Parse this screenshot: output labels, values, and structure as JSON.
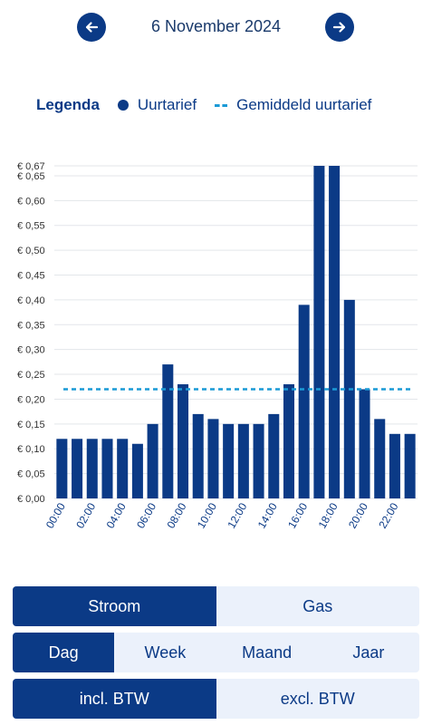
{
  "header": {
    "date": "6 November 2024",
    "prev_icon": "arrow-left-icon",
    "next_icon": "arrow-right-icon"
  },
  "legend": {
    "title": "Legenda",
    "series_label": "Uurtarief",
    "average_label": "Gemiddeld uurtarief"
  },
  "colors": {
    "bar": "#0b3a86",
    "average_line": "#1a9ad6",
    "grid": "#e3e6ea"
  },
  "chart_data": {
    "type": "bar",
    "categories": [
      "00:00",
      "01:00",
      "02:00",
      "03:00",
      "04:00",
      "05:00",
      "06:00",
      "07:00",
      "08:00",
      "09:00",
      "10:00",
      "11:00",
      "12:00",
      "13:00",
      "14:00",
      "15:00",
      "16:00",
      "17:00",
      "18:00",
      "19:00",
      "20:00",
      "21:00",
      "22:00",
      "23:00"
    ],
    "x_tick_labels": [
      "00:00",
      "02:00",
      "04:00",
      "06:00",
      "08:00",
      "10:00",
      "12:00",
      "14:00",
      "16:00",
      "18:00",
      "20:00",
      "22:00"
    ],
    "values": [
      0.12,
      0.12,
      0.12,
      0.12,
      0.12,
      0.11,
      0.15,
      0.27,
      0.23,
      0.17,
      0.16,
      0.15,
      0.15,
      0.15,
      0.17,
      0.23,
      0.39,
      0.67,
      0.67,
      0.4,
      0.22,
      0.16,
      0.13,
      0.13
    ],
    "average": 0.22,
    "ylim": [
      0,
      0.67
    ],
    "y_ticks": [
      0,
      0.05,
      0.1,
      0.15,
      0.2,
      0.25,
      0.3,
      0.35,
      0.4,
      0.45,
      0.5,
      0.55,
      0.6,
      0.65,
      0.67
    ],
    "y_tick_labels": [
      "€ 0,00",
      "€ 0,05",
      "€ 0,10",
      "€ 0,15",
      "€ 0,20",
      "€ 0,25",
      "€ 0,30",
      "€ 0,35",
      "€ 0,40",
      "€ 0,45",
      "€ 0,50",
      "€ 0,55",
      "€ 0,60",
      "€ 0,65",
      "€ 0,67"
    ],
    "grid": true
  },
  "controls": {
    "energy": {
      "options": [
        "Stroom",
        "Gas"
      ],
      "selected": 0
    },
    "period": {
      "options": [
        "Dag",
        "Week",
        "Maand",
        "Jaar"
      ],
      "selected": 0
    },
    "tax": {
      "options": [
        "incl. BTW",
        "excl. BTW"
      ],
      "selected": 0
    }
  }
}
